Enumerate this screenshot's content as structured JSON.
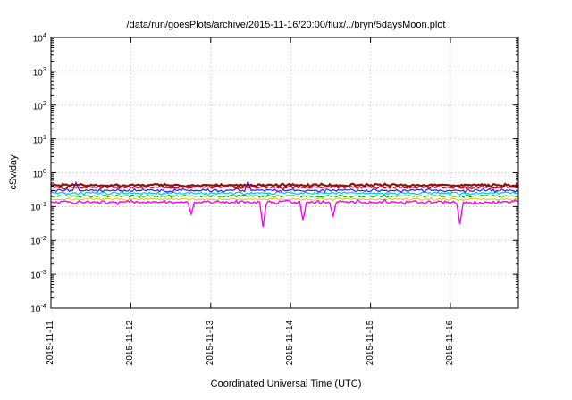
{
  "title": "/data/run/goesPlots/archive/2015-11-16/20:00/flux/../bryn/5daysMoon.plot",
  "chart_data": {
    "type": "line",
    "title": "/data/run/goesPlots/archive/2015-11-16/20:00/flux/../bryn/5daysMoon.plot",
    "xlabel": "Coordinated Universal Time (UTC)",
    "ylabel": "cSv/day",
    "y_scale": "log10",
    "ylim_exp": [
      -4,
      4
    ],
    "x_ticks": [
      "2015-11-11",
      "2015-11-12",
      "2015-11-13",
      "2015-11-14",
      "2015-11-15",
      "2015-11-16"
    ],
    "x_days_total": 5.85,
    "grid": true,
    "grid_color": "#b8b8b8",
    "axis_color": "#000000",
    "background": "#ffffff",
    "series": [
      {
        "name": "flux-line-yellow",
        "color": "#cccc00",
        "base": 0.165,
        "noise": 0.05,
        "width": 1.0,
        "spikes": []
      },
      {
        "name": "flux-line-green",
        "color": "#00a800",
        "base": 0.205,
        "noise": 0.05,
        "width": 1.1,
        "spikes": []
      },
      {
        "name": "flux-line-cyan",
        "color": "#00c8c8",
        "base": 0.25,
        "noise": 0.06,
        "width": 1.2,
        "spikes": []
      },
      {
        "name": "flux-line-blue",
        "color": "#2424ff",
        "base": 0.3,
        "noise": 0.07,
        "width": 1.2,
        "spikes": [
          [
            0.055,
            0.52
          ],
          [
            0.42,
            0.55
          ]
        ]
      },
      {
        "name": "flux-line-red",
        "color": "#e00000",
        "base": 0.37,
        "noise": 0.06,
        "width": 1.3,
        "spikes": []
      },
      {
        "name": "flux-line-darkred",
        "color": "#8b1515",
        "base": 0.43,
        "noise": 0.06,
        "width": 2.2,
        "spikes": []
      },
      {
        "name": "flux-line-magenta",
        "color": "#ff00ff",
        "base": 0.135,
        "noise": 0.08,
        "width": 1.4,
        "spikes": [
          [
            0.3,
            0.06
          ],
          [
            0.455,
            0.025
          ],
          [
            0.54,
            0.04
          ],
          [
            0.605,
            0.05
          ],
          [
            0.875,
            0.03
          ]
        ]
      }
    ]
  }
}
